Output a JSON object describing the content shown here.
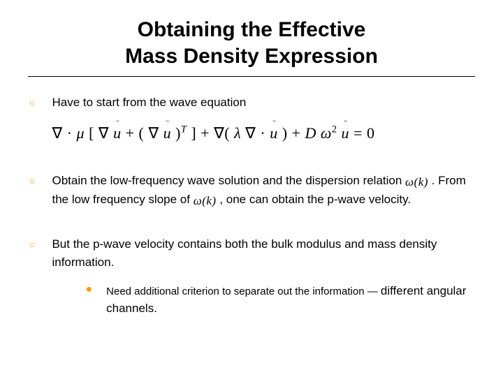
{
  "colors": {
    "accent": "#ff9900",
    "text": "#000000",
    "bg": "#ffffff"
  },
  "title": "Obtaining the Effective\nMass Density Expression",
  "bullets": [
    {
      "text": "Have to start from the wave equation",
      "equation_parts": {
        "nabla_dot": "∇ ·",
        "mu": "μ",
        "lbrack": "[",
        "nabla": "∇",
        "u": "u",
        "plus": " + (",
        "nabla2": "∇",
        "rp": ")",
        "supT": "T",
        "rbrack": "] + ",
        "nabla3": "∇(",
        "lambda": "λ",
        "nabla4": "∇ ·",
        "rp2": ") + ",
        "D": "D",
        "omega": "ω",
        "sup2": "2",
        "eq0": " = 0"
      }
    },
    {
      "pre1": "Obtain the low-frequency wave solution and the dispersion relation ",
      "omega_k_1": "ω(k)",
      "mid": " .  From the low frequency slope of ",
      "omega_k_2": "ω(k)",
      "post": " , one can obtain the p-wave velocity."
    },
    {
      "text": "But the p-wave velocity contains both the bulk modulus and mass density information.",
      "sub": {
        "pre": "Need additional criterion to separate out the information — ",
        "emph": "different angular channels."
      }
    }
  ]
}
